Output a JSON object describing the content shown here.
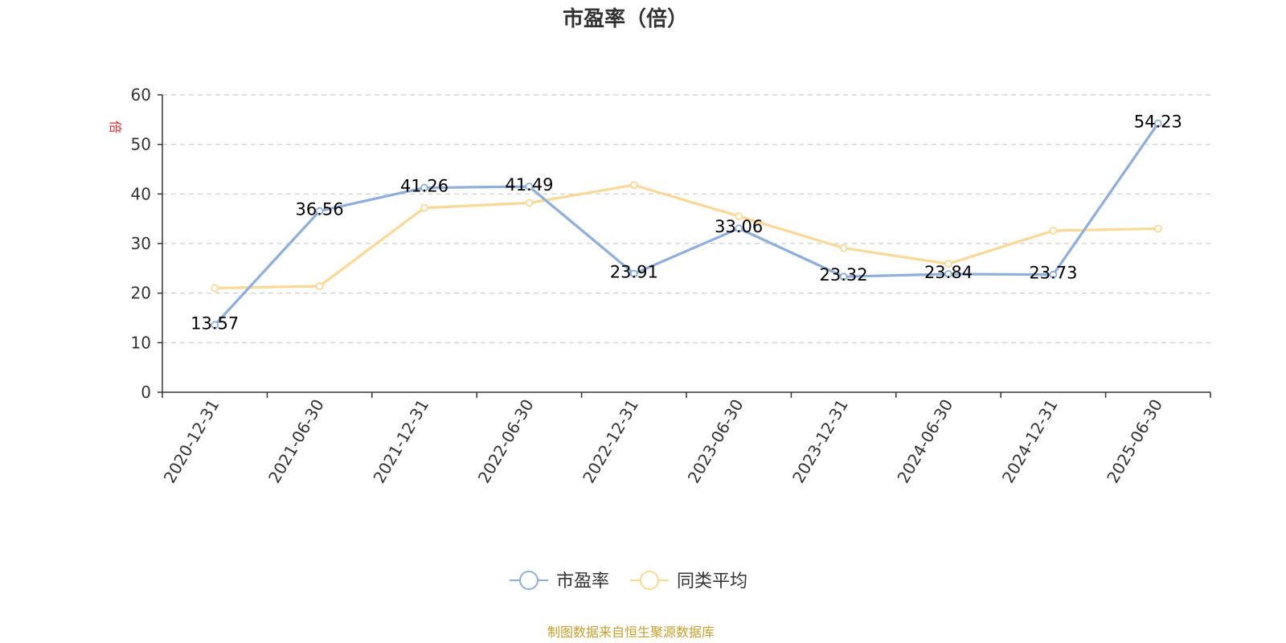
{
  "chart_data": {
    "type": "line",
    "title": "市盈率（倍）",
    "ylabel": "倍",
    "xlabel": "",
    "ylim": [
      0,
      60
    ],
    "y_ticks": [
      0,
      10,
      20,
      30,
      40,
      50,
      60
    ],
    "grid": true,
    "legend_position": "bottom",
    "categories": [
      "2020-12-31",
      "2021-06-30",
      "2021-12-31",
      "2022-06-30",
      "2022-12-31",
      "2023-06-30",
      "2023-12-31",
      "2024-06-30",
      "2024-12-31",
      "2025-06-30"
    ],
    "series": [
      {
        "name": "市盈率",
        "color": "#8eaedb",
        "values": [
          13.57,
          36.56,
          41.26,
          41.49,
          23.91,
          33.06,
          23.32,
          23.84,
          23.73,
          54.23
        ],
        "data_labels": [
          "13.57",
          "36.56",
          "41.26",
          "41.49",
          "23.91",
          "33.06",
          "23.32",
          "23.84",
          "23.73",
          "54.23"
        ]
      },
      {
        "name": "同类平均",
        "color": "#fcd896",
        "values": [
          21.0,
          21.4,
          37.2,
          38.2,
          41.8,
          35.5,
          29.1,
          25.9,
          32.6,
          33.0
        ]
      }
    ],
    "source": "制图数据来自恒生聚源数据库"
  }
}
